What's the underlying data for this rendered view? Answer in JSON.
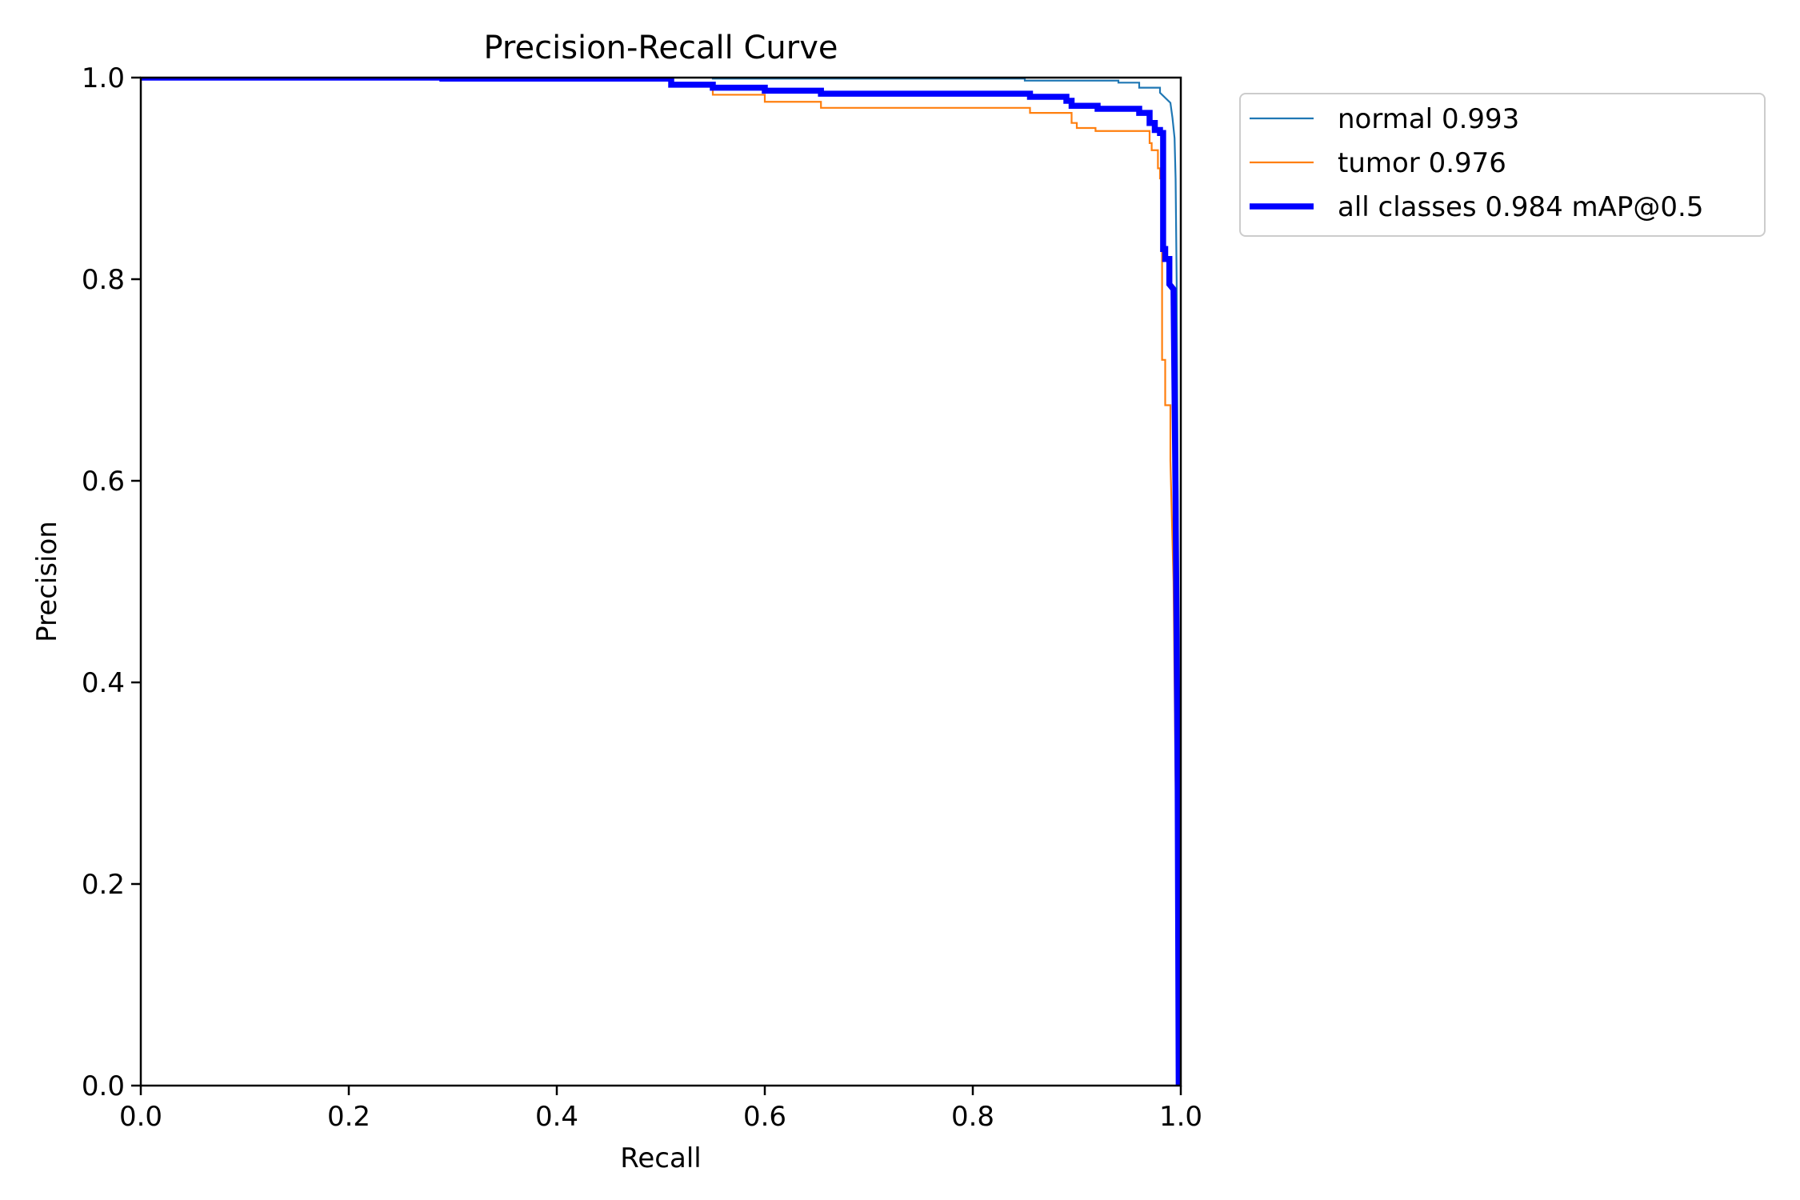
{
  "chart_data": {
    "type": "line",
    "title": "Precision-Recall Curve",
    "xlabel": "Recall",
    "ylabel": "Precision",
    "xlim": [
      0,
      1
    ],
    "ylim": [
      0,
      1
    ],
    "xticks": [
      "0.0",
      "0.2",
      "0.4",
      "0.6",
      "0.8",
      "1.0"
    ],
    "yticks": [
      "0.0",
      "0.2",
      "0.4",
      "0.6",
      "0.8",
      "1.0"
    ],
    "grid": false,
    "legend_position": "outside upper right",
    "series": [
      {
        "name": "normal 0.993",
        "color": "#1f77b4",
        "x": [
          0,
          0.55,
          0.55,
          0.85,
          0.85,
          0.94,
          0.94,
          0.96,
          0.96,
          0.98,
          0.98,
          0.99,
          0.992,
          0.994,
          0.995,
          0.996,
          0.997,
          0.998,
          0.998
        ],
        "y": [
          1.0,
          1.0,
          0.999,
          0.999,
          0.997,
          0.997,
          0.995,
          0.995,
          0.99,
          0.99,
          0.985,
          0.975,
          0.96,
          0.94,
          0.9,
          0.8,
          0.6,
          0.3,
          0.0
        ]
      },
      {
        "name": "tumor 0.976",
        "color": "#ff7f0e",
        "x": [
          0,
          0.51,
          0.51,
          0.55,
          0.55,
          0.6,
          0.6,
          0.654,
          0.654,
          0.855,
          0.855,
          0.895,
          0.895,
          0.9,
          0.9,
          0.918,
          0.918,
          0.97,
          0.97,
          0.972,
          0.972,
          0.978,
          0.978,
          0.98,
          0.98,
          0.982,
          0.982,
          0.985,
          0.985,
          0.99,
          0.99,
          0.993,
          0.995,
          0.997,
          0.998
        ],
        "y": [
          1.0,
          1.0,
          0.993,
          0.993,
          0.983,
          0.983,
          0.976,
          0.976,
          0.97,
          0.97,
          0.965,
          0.965,
          0.955,
          0.955,
          0.95,
          0.95,
          0.947,
          0.947,
          0.935,
          0.935,
          0.928,
          0.928,
          0.91,
          0.91,
          0.9,
          0.9,
          0.72,
          0.72,
          0.675,
          0.675,
          0.62,
          0.5,
          0.3,
          0.1,
          0.0
        ]
      },
      {
        "name": "all classes 0.984 mAP@0.5",
        "color": "#0000ff",
        "x": [
          0,
          0.29,
          0.29,
          0.51,
          0.51,
          0.55,
          0.55,
          0.6,
          0.6,
          0.654,
          0.654,
          0.855,
          0.855,
          0.89,
          0.89,
          0.895,
          0.895,
          0.92,
          0.92,
          0.96,
          0.96,
          0.97,
          0.97,
          0.975,
          0.975,
          0.98,
          0.98,
          0.983,
          0.983,
          0.985,
          0.985,
          0.989,
          0.989,
          0.993,
          0.995,
          0.997,
          0.998
        ],
        "y": [
          1.0,
          1.0,
          0.999,
          0.999,
          0.993,
          0.993,
          0.99,
          0.99,
          0.987,
          0.987,
          0.984,
          0.984,
          0.981,
          0.981,
          0.977,
          0.977,
          0.972,
          0.972,
          0.969,
          0.969,
          0.965,
          0.965,
          0.955,
          0.955,
          0.948,
          0.948,
          0.945,
          0.945,
          0.83,
          0.83,
          0.82,
          0.82,
          0.795,
          0.79,
          0.58,
          0.3,
          0.0
        ]
      }
    ]
  }
}
